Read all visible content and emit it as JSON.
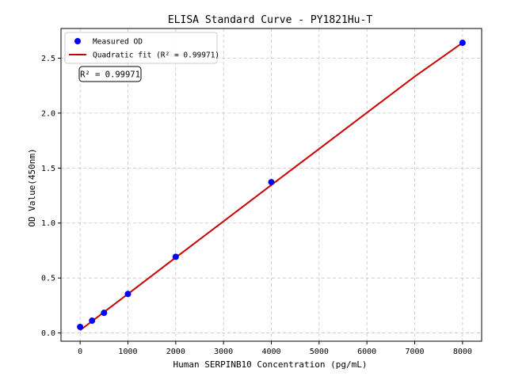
{
  "chart_data": {
    "type": "scatter",
    "title": "ELISA Standard Curve - PY1821Hu-T",
    "xlabel": "Human SERPINB10 Concentration (pg/mL)",
    "ylabel": "OD Value(450nm)",
    "xlim": [
      -400,
      8400
    ],
    "ylim": [
      -0.075,
      2.77
    ],
    "xticks": [
      0,
      1000,
      2000,
      3000,
      4000,
      5000,
      6000,
      7000,
      8000
    ],
    "yticks": [
      0.0,
      0.5,
      1.0,
      1.5,
      2.0,
      2.5
    ],
    "grid": true,
    "legend_position": "top-left",
    "series": [
      {
        "name": "Measured OD",
        "kind": "scatter",
        "color": "#0000ff",
        "x": [
          0,
          250,
          500,
          1000,
          2000,
          4000,
          8000
        ],
        "y": [
          0.055,
          0.112,
          0.183,
          0.355,
          0.693,
          1.372,
          2.64
        ]
      },
      {
        "name": "Quadratic fit",
        "kind": "line",
        "color": "#cc0000",
        "x": [
          0,
          500,
          1000,
          2000,
          3000,
          4000,
          5000,
          6000,
          7000,
          8000
        ],
        "y": [
          0.025,
          0.19,
          0.355,
          0.686,
          1.016,
          1.346,
          1.675,
          2.004,
          2.333,
          2.64
        ]
      }
    ],
    "legend": [
      {
        "label": "Measured OD",
        "marker": "circle",
        "color": "#0000ff"
      },
      {
        "label": "Quadratic fit (R² = 0.99971)",
        "marker": "line",
        "color": "#cc0000"
      }
    ],
    "annotation": "R² = 0.99971"
  }
}
